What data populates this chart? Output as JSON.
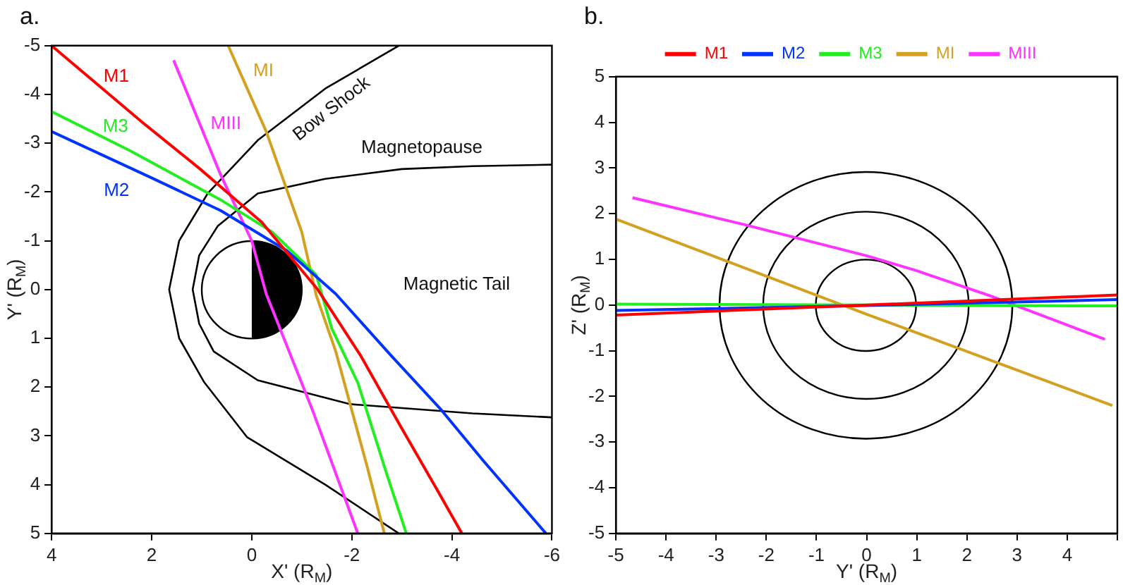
{
  "chart_data": [
    {
      "type": "line",
      "title": "a.",
      "xlabel": "X' (R$_{M}$)",
      "ylabel": "Y' (R$_{M}$)",
      "xlim": [
        4,
        -6
      ],
      "ylim": [
        5,
        -5
      ],
      "xticks": [
        4,
        2,
        0,
        -2,
        -4,
        -6
      ],
      "yticks": [
        -5,
        -4,
        -3,
        -2,
        -1,
        0,
        1,
        2,
        3,
        4,
        5
      ],
      "grid": false,
      "legend": false,
      "annotations": [
        "Bow Shock",
        "Magnetopause",
        "Magnetic Tail"
      ],
      "series": [
        {
          "name": "M1",
          "color": "#ff0000",
          "x": [
            4,
            2.2,
            1.03,
            -0.2,
            -1.32,
            -2.18,
            -2.94,
            -3.68,
            -4.2
          ],
          "values": [
            -5,
            -3.44,
            -2.47,
            -1.38,
            0,
            1.36,
            2.74,
            4.06,
            5
          ]
        },
        {
          "name": "M2",
          "color": "#0033ff",
          "x": [
            4,
            1.94,
            0.62,
            -0.7,
            -1.68,
            -2.8,
            -3.79,
            -4.62,
            -5.88
          ],
          "values": [
            -3.24,
            -2.26,
            -1.62,
            -0.8,
            0.09,
            1.37,
            2.47,
            3.5,
            5
          ]
        },
        {
          "name": "M3",
          "color": "#22ee22",
          "x": [
            4,
            2.44,
            0.59,
            -0.41,
            -1.29,
            -1.6,
            -2.12,
            -2.71,
            -3.09
          ],
          "values": [
            -3.65,
            -2.85,
            -1.82,
            -1.18,
            -0.3,
            0.8,
            1.91,
            3.82,
            5
          ]
        },
        {
          "name": "MI",
          "color": "#d4a020",
          "x": [
            0.47,
            -0.29,
            -1,
            -1.29,
            -1.68,
            -2.32,
            -2.65
          ],
          "values": [
            -5,
            -3.24,
            -1.18,
            0.12,
            1.27,
            3.68,
            5
          ]
        },
        {
          "name": "MIII",
          "color": "#ff33ff",
          "x": [
            1.56,
            0.62,
            0,
            -0.29,
            -1.24,
            -2.12
          ],
          "values": [
            -4.7,
            -2.35,
            -1,
            0.09,
            2.54,
            5
          ]
        },
        {
          "color": "#000000",
          "x": [
            -2.94,
            -1.47,
            -0.12,
            0.88,
            1.45,
            1.65,
            1.45,
            0.95,
            0.09,
            -1.47,
            -2.94
          ],
          "values": [
            -5,
            -4.12,
            -3.06,
            -1.97,
            -1,
            0,
            1,
            1.9,
            3.03,
            4,
            5
          ]
        },
        {
          "color": "#000000",
          "x": [
            -6,
            -4.41,
            -3,
            -1.47,
            -0.12,
            0.68,
            1.05,
            1.18,
            1.05,
            0.76,
            -0.12,
            -1.97,
            -4.41,
            -6
          ],
          "values": [
            -2.56,
            -2.53,
            -2.47,
            -2.27,
            -1.97,
            -1.3,
            -0.7,
            0,
            0.7,
            1.27,
            1.86,
            2.35,
            2.54,
            2.62
          ]
        }
      ]
    },
    {
      "type": "line",
      "title": "b.",
      "xlabel": "Y' (R$_{M}$)",
      "ylabel": "Z' (R$_{M}$)",
      "xlim": [
        -5,
        5
      ],
      "ylim": [
        -5,
        5
      ],
      "xticks": [
        -5,
        -4,
        -3,
        -2,
        -1,
        0,
        1,
        2,
        3,
        4,
        {
          "value": 5,
          "label": null
        }
      ],
      "yticks": [
        -5,
        -4,
        -3,
        -2,
        -1,
        0,
        1,
        2,
        3,
        4,
        5
      ],
      "grid": false,
      "legend": "top",
      "series": [
        {
          "name": "M1",
          "color": "#ff0000",
          "x": [
            -5,
            0,
            5
          ],
          "values": [
            -0.22,
            0,
            0.22
          ]
        },
        {
          "name": "M2",
          "color": "#0033ff",
          "x": [
            -5,
            0,
            5
          ],
          "values": [
            -0.12,
            -0.01,
            0.12
          ]
        },
        {
          "name": "M3",
          "color": "#22ee22",
          "x": [
            -5,
            0,
            5
          ],
          "values": [
            0.02,
            0,
            -0.02
          ]
        },
        {
          "name": "MI",
          "color": "#d4a020",
          "x": [
            -5,
            0,
            4.9
          ],
          "values": [
            1.88,
            -0.2,
            -2.2
          ]
        },
        {
          "name": "MIII",
          "color": "#ff33ff",
          "x": [
            -4.67,
            -2.4,
            0,
            1,
            2.47,
            4.75
          ],
          "values": [
            2.35,
            1.75,
            1.08,
            0.75,
            0.2,
            -0.75
          ]
        }
      ]
    }
  ]
}
